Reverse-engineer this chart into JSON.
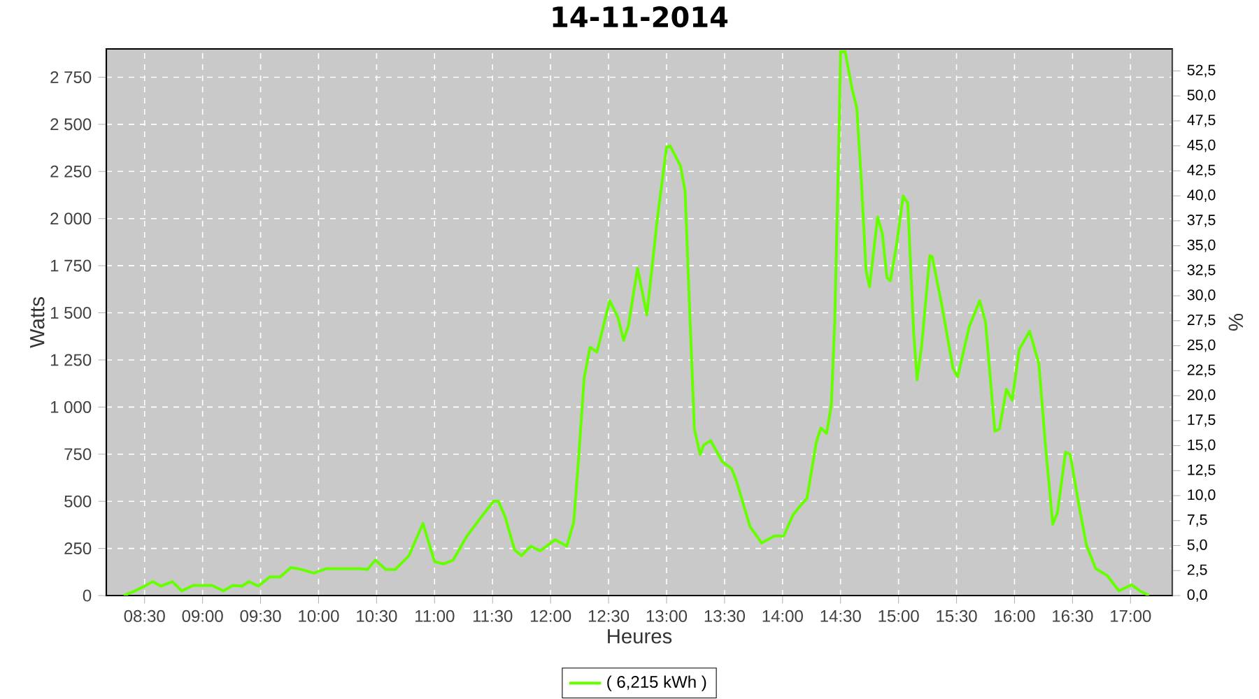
{
  "chart_data": {
    "type": "line",
    "title": "14-11-2014",
    "xlabel": "Heures",
    "ylabel": "Watts",
    "y2label": "%",
    "xlim": [
      8.17,
      17.36
    ],
    "xticks": [
      {
        "value": 8.5,
        "label": "08:30"
      },
      {
        "value": 9,
        "label": "09:00"
      },
      {
        "value": 9.5,
        "label": "09:30"
      },
      {
        "value": 10,
        "label": "10:00"
      },
      {
        "value": 10.5,
        "label": "10:30"
      },
      {
        "value": 11,
        "label": "11:00"
      },
      {
        "value": 11.5,
        "label": "11:30"
      },
      {
        "value": 12,
        "label": "12:00"
      },
      {
        "value": 12.5,
        "label": "12:30"
      },
      {
        "value": 13,
        "label": "13:00"
      },
      {
        "value": 13.5,
        "label": "13:30"
      },
      {
        "value": 14,
        "label": "14:00"
      },
      {
        "value": 14.5,
        "label": "14:30"
      },
      {
        "value": 15,
        "label": "15:00"
      },
      {
        "value": 15.5,
        "label": "15:30"
      },
      {
        "value": 16,
        "label": "16:00"
      },
      {
        "value": 16.5,
        "label": "16:30"
      },
      {
        "value": 17,
        "label": "17:00"
      }
    ],
    "ylim": [
      0,
      2900
    ],
    "yticks": [
      0,
      250,
      500,
      750,
      {
        "value": 1000,
        "label": "1 000"
      },
      {
        "value": 1250,
        "label": "1 250"
      },
      {
        "value": 1500,
        "label": "1 500"
      },
      {
        "value": 1750,
        "label": "1 750"
      },
      {
        "value": 2000,
        "label": "2 000"
      },
      {
        "value": 2250,
        "label": "2 250"
      },
      {
        "value": 2500,
        "label": "2 500"
      },
      {
        "value": 2750,
        "label": "2 750"
      }
    ],
    "y2lim": [
      0,
      54.7
    ],
    "y2ticks": [
      {
        "value": 0,
        "label": "0,0"
      },
      {
        "value": 2.5,
        "label": "2,5"
      },
      {
        "value": 5,
        "label": "5,0"
      },
      {
        "value": 7.5,
        "label": "7,5"
      },
      {
        "value": 10,
        "label": "10,0"
      },
      {
        "value": 12.5,
        "label": "12,5"
      },
      {
        "value": 15,
        "label": "15,0"
      },
      {
        "value": 17.5,
        "label": "17,5"
      },
      {
        "value": 20,
        "label": "20,0"
      },
      {
        "value": 22.5,
        "label": "22,5"
      },
      {
        "value": 25,
        "label": "25,0"
      },
      {
        "value": 27.5,
        "label": "27,5"
      },
      {
        "value": 30,
        "label": "30,0"
      },
      {
        "value": 32.5,
        "label": "32,5"
      },
      {
        "value": 35,
        "label": "35,0"
      },
      {
        "value": 37.5,
        "label": "37,5"
      },
      {
        "value": 40,
        "label": "40,0"
      },
      {
        "value": 42.5,
        "label": "42,5"
      },
      {
        "value": 45,
        "label": "45,0"
      },
      {
        "value": 47.5,
        "label": "47,5"
      },
      {
        "value": 50,
        "label": "50,0"
      },
      {
        "value": 52.5,
        "label": "52,5"
      }
    ],
    "grid": true,
    "legend": "bottom",
    "line_style": "solid",
    "series": [
      {
        "name": "( 6,215 kWh )",
        "color": "#66ff00",
        "x": [
          8.32,
          8.4,
          8.5,
          8.57,
          8.64,
          8.74,
          8.82,
          8.92,
          9.08,
          9.18,
          9.26,
          9.34,
          9.4,
          9.48,
          9.58,
          9.67,
          9.76,
          9.82,
          9.96,
          10.07,
          10.36,
          10.42,
          10.49,
          10.58,
          10.66,
          10.78,
          10.9,
          11.0,
          11.08,
          11.16,
          11.28,
          11.4,
          11.51,
          11.55,
          11.61,
          11.69,
          11.75,
          11.83,
          11.91,
          12.04,
          12.14,
          12.2,
          12.24,
          12.29,
          12.34,
          12.4,
          12.51,
          12.58,
          12.63,
          12.67,
          12.75,
          12.83,
          12.92,
          13.0,
          13.03,
          13.12,
          13.16,
          13.2,
          13.24,
          13.29,
          13.32,
          13.38,
          13.48,
          13.56,
          13.6,
          13.72,
          13.82,
          13.93,
          14.01,
          14.09,
          14.17,
          14.21,
          14.29,
          14.33,
          14.38,
          14.42,
          14.45,
          14.49,
          14.5,
          14.54,
          14.6,
          14.64,
          14.68,
          14.72,
          14.75,
          14.82,
          14.86,
          14.9,
          14.93,
          14.98,
          15.04,
          15.08,
          15.13,
          15.16,
          15.2,
          15.27,
          15.29,
          15.37,
          15.47,
          15.51,
          15.61,
          15.7,
          15.75,
          15.83,
          15.87,
          15.93,
          15.98,
          16.04,
          16.13,
          16.21,
          16.27,
          16.33,
          16.37,
          16.44,
          16.48,
          16.56,
          16.62,
          16.7,
          16.8,
          16.9,
          17.01,
          17.08,
          17.16
        ],
        "values": [
          0,
          20,
          50,
          74,
          50,
          74,
          25,
          54,
          54,
          25,
          54,
          50,
          74,
          50,
          99,
          99,
          148,
          143,
          119,
          143,
          143,
          138,
          188,
          138,
          138,
          212,
          383,
          180,
          168,
          188,
          316,
          415,
          501,
          501,
          415,
          242,
          212,
          262,
          237,
          296,
          262,
          390,
          711,
          1156,
          1317,
          1292,
          1564,
          1477,
          1354,
          1428,
          1736,
          1489,
          1996,
          2379,
          2386,
          2280,
          2144,
          1502,
          884,
          748,
          798,
          822,
          711,
          674,
          613,
          366,
          279,
          316,
          316,
          427,
          489,
          514,
          810,
          889,
          860,
          1008,
          1452,
          2539,
          2885,
          2885,
          2687,
          2589,
          2193,
          1724,
          1638,
          2008,
          1922,
          1687,
          1670,
          1848,
          2119,
          2082,
          1403,
          1144,
          1329,
          1803,
          1798,
          1551,
          1205,
          1161,
          1428,
          1564,
          1452,
          872,
          884,
          1094,
          1037,
          1304,
          1403,
          1230,
          773,
          378,
          440,
          761,
          748,
          464,
          267,
          143,
          106,
          25,
          57,
          25,
          0
        ]
      }
    ]
  }
}
